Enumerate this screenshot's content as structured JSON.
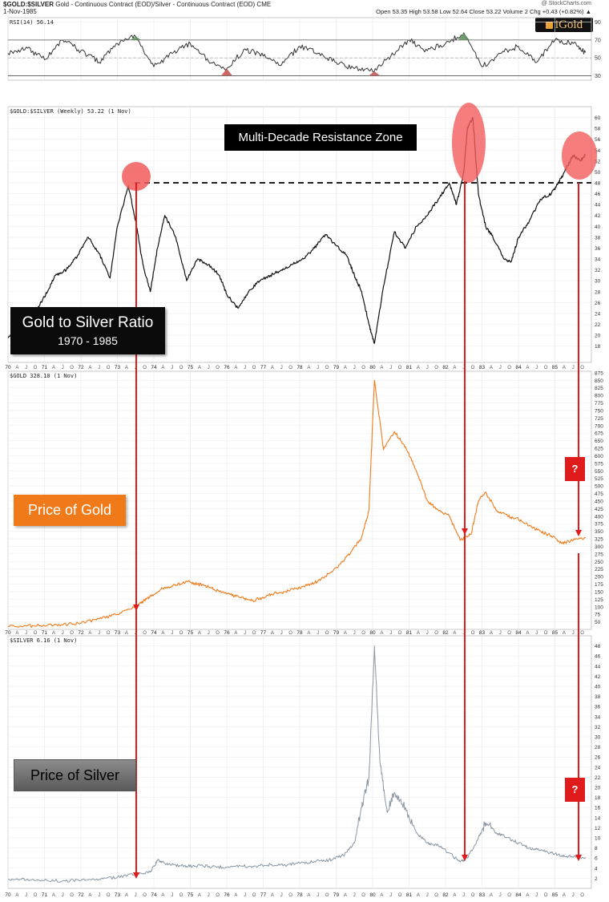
{
  "header": {
    "symbol": "$GOLD:$SILVER",
    "description": "Gold - Continuous Contract (EOD)/Silver - Continuous Contract (EOD) CME",
    "date": "1-Nov-1985",
    "source": "@ StockCharts.com",
    "quote": "Open 53.35  High 53.58  Low 52.64  Close 53.22  Volume 2  Chg +0.43 (+0.82%) ▲"
  },
  "logo": {
    "text": "iGold"
  },
  "colors": {
    "ratio": "#111111",
    "gold": "#f07a1a",
    "silver": "#8896a3",
    "arrow": "#e01b1b",
    "highlight": "#f25c5c",
    "rsi_up": "#5a8f5a",
    "rsi_down": "#c0504d"
  },
  "annotations": {
    "resistance": "Multi-Decade Resistance Zone",
    "ratio_title": "Gold to Silver Ratio",
    "ratio_years": "1970 - 1985",
    "gold_label": "Price of Gold",
    "silver_label": "Price of Silver",
    "question": "?"
  },
  "chart_data": [
    {
      "type": "line",
      "title": "RSI(14) 56.14",
      "ylim": [
        25,
        95
      ],
      "y_ticks": [
        30,
        50,
        70,
        90
      ],
      "x": [
        1970.0,
        1970.5,
        1971.0,
        1971.5,
        1972.0,
        1972.5,
        1973.0,
        1973.5,
        1974.0,
        1974.5,
        1975.0,
        1975.5,
        1976.0,
        1976.5,
        1977.0,
        1977.5,
        1978.0,
        1978.5,
        1979.0,
        1979.5,
        1980.0,
        1980.5,
        1981.0,
        1981.5,
        1982.0,
        1982.5,
        1983.0,
        1983.5,
        1984.0,
        1984.5,
        1985.0,
        1985.5,
        1985.84
      ],
      "values": [
        55,
        62,
        48,
        70,
        58,
        45,
        66,
        74,
        40,
        55,
        66,
        46,
        38,
        60,
        52,
        42,
        63,
        55,
        45,
        38,
        35,
        52,
        70,
        58,
        66,
        78,
        40,
        55,
        63,
        45,
        70,
        66,
        56
      ]
    },
    {
      "type": "line",
      "title": "$GOLD:$SILVER (Weekly) 53.22 (1 Nov)",
      "ylim": [
        15,
        62
      ],
      "y_ticks": [
        18,
        20,
        22,
        24,
        26,
        28,
        30,
        32,
        34,
        36,
        38,
        40,
        42,
        44,
        46,
        48,
        50,
        52,
        54,
        56,
        58,
        60
      ],
      "x": [
        1970.0,
        1970.4,
        1970.8,
        1971.0,
        1971.3,
        1971.6,
        1971.9,
        1972.2,
        1972.5,
        1972.8,
        1973.0,
        1973.3,
        1973.5,
        1973.7,
        1973.9,
        1974.1,
        1974.3,
        1974.6,
        1974.9,
        1975.2,
        1975.5,
        1975.8,
        1976.0,
        1976.3,
        1976.6,
        1976.9,
        1977.2,
        1977.5,
        1977.8,
        1978.1,
        1978.4,
        1978.7,
        1979.0,
        1979.3,
        1979.5,
        1979.7,
        1979.9,
        1980.05,
        1980.3,
        1980.6,
        1980.9,
        1981.2,
        1981.5,
        1981.8,
        1982.1,
        1982.3,
        1982.5,
        1982.6,
        1982.75,
        1982.9,
        1983.1,
        1983.3,
        1983.6,
        1983.8,
        1984.0,
        1984.3,
        1984.6,
        1984.9,
        1985.1,
        1985.3,
        1985.5,
        1985.7,
        1985.84
      ],
      "values": [
        19.5,
        22,
        25,
        27,
        31,
        32,
        34.5,
        38,
        35,
        30.5,
        40,
        47.5,
        41,
        33,
        28,
        36,
        42,
        38,
        30,
        34,
        33,
        31,
        27.5,
        25,
        28,
        30,
        31,
        32,
        33,
        34,
        36,
        38.5,
        36.5,
        34.5,
        31,
        28,
        22,
        18.5,
        29,
        39,
        36,
        40,
        42,
        45,
        48,
        44,
        50,
        58,
        60,
        46,
        40,
        38,
        34,
        33.5,
        38,
        41,
        45,
        46,
        48,
        50.5,
        53,
        52,
        53.22
      ]
    },
    {
      "type": "line",
      "title": "$GOLD 328.10 (1 Nov)",
      "ylim": [
        25,
        880
      ],
      "y_ticks": [
        50,
        75,
        100,
        125,
        150,
        175,
        200,
        225,
        250,
        275,
        300,
        325,
        350,
        375,
        400,
        425,
        450,
        475,
        500,
        525,
        550,
        575,
        600,
        625,
        650,
        675,
        700,
        725,
        750,
        775,
        800,
        825,
        850,
        875
      ],
      "x": [
        1970.0,
        1970.5,
        1971.0,
        1971.5,
        1972.0,
        1972.5,
        1973.0,
        1973.5,
        1973.8,
        1974.0,
        1974.3,
        1974.6,
        1974.9,
        1975.2,
        1975.5,
        1975.8,
        1976.1,
        1976.4,
        1976.7,
        1977.0,
        1977.3,
        1977.6,
        1977.9,
        1978.2,
        1978.5,
        1978.8,
        1979.1,
        1979.4,
        1979.7,
        1979.9,
        1980.05,
        1980.3,
        1980.6,
        1980.9,
        1981.2,
        1981.5,
        1981.8,
        1982.1,
        1982.4,
        1982.7,
        1982.9,
        1983.1,
        1983.4,
        1983.7,
        1984.0,
        1984.3,
        1984.6,
        1984.9,
        1985.2,
        1985.5,
        1985.84
      ],
      "values": [
        35,
        36,
        38,
        40,
        46,
        60,
        75,
        100,
        125,
        140,
        165,
        170,
        185,
        175,
        165,
        150,
        140,
        130,
        120,
        130,
        145,
        150,
        160,
        170,
        185,
        210,
        240,
        280,
        330,
        420,
        850,
        620,
        680,
        630,
        550,
        450,
        420,
        400,
        320,
        340,
        450,
        480,
        420,
        400,
        390,
        370,
        350,
        335,
        310,
        320,
        328.1
      ]
    },
    {
      "type": "line",
      "title": "$SILVER 6.16 (1 Nov)",
      "ylim": [
        0,
        50
      ],
      "y_ticks": [
        2,
        4,
        6,
        8,
        10,
        12,
        14,
        16,
        18,
        20,
        22,
        24,
        26,
        28,
        30,
        32,
        34,
        36,
        38,
        40,
        42,
        44,
        46,
        48
      ],
      "x": [
        1970.0,
        1970.5,
        1971.0,
        1971.5,
        1972.0,
        1972.5,
        1973.0,
        1973.5,
        1973.9,
        1974.1,
        1974.3,
        1974.6,
        1974.9,
        1975.2,
        1975.6,
        1976.0,
        1976.4,
        1976.8,
        1977.2,
        1977.6,
        1978.0,
        1978.4,
        1978.8,
        1979.2,
        1979.5,
        1979.7,
        1979.9,
        1980.05,
        1980.2,
        1980.4,
        1980.6,
        1980.9,
        1981.2,
        1981.5,
        1981.8,
        1982.1,
        1982.4,
        1982.6,
        1982.9,
        1983.1,
        1983.4,
        1983.7,
        1984.0,
        1984.3,
        1984.6,
        1984.9,
        1985.2,
        1985.5,
        1985.84
      ],
      "values": [
        1.8,
        1.7,
        1.6,
        1.5,
        1.6,
        1.8,
        2.2,
        2.8,
        3.2,
        5.5,
        5.0,
        4.6,
        4.4,
        4.5,
        4.3,
        4.2,
        4.4,
        4.4,
        4.7,
        4.6,
        5.0,
        5.3,
        5.6,
        6.5,
        9.0,
        16,
        22,
        48,
        25,
        15,
        19,
        16,
        11,
        9,
        8.5,
        7,
        5.2,
        6,
        10,
        13,
        11,
        10,
        9,
        8,
        7.5,
        7,
        6.5,
        6.2,
        6.16
      ]
    }
  ],
  "x_axis": {
    "start": 1970.0,
    "end": 1986.0,
    "year_labels": [
      "70",
      "71",
      "72",
      "73",
      "74",
      "75",
      "76",
      "77",
      "78",
      "79",
      "80",
      "81",
      "82",
      "83",
      "84",
      "85"
    ],
    "month_letters": [
      "A",
      "J",
      "O"
    ]
  }
}
